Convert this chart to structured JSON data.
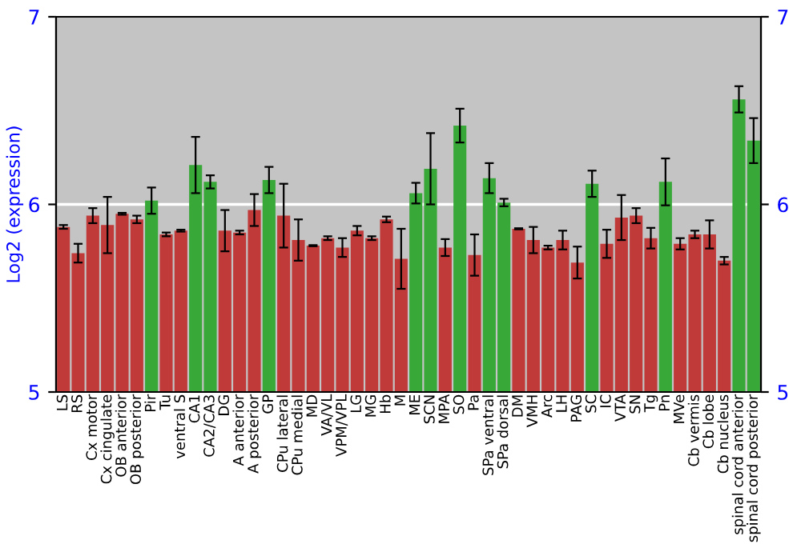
{
  "chart_data": {
    "type": "bar",
    "ylabel": "Log2 (expression)",
    "categories": [
      "LS",
      "RS",
      "Cx motor",
      "Cx cingulate",
      "OB anterior",
      "OB posterior",
      "Pir",
      "Tu",
      "ventral S",
      "CA1",
      "CA2/CA3",
      "DG",
      "A anterior",
      "A posterior",
      "GP",
      "CPu lateral",
      "CPu medial",
      "MD",
      "VA/VL",
      "VPM/VPL",
      "LG",
      "MG",
      "Hb",
      "M",
      "ME",
      "SCN",
      "MPA",
      "SO",
      "Pa",
      "SPa ventral",
      "SPa dorsal",
      "DM",
      "VMH",
      "Arc",
      "LH",
      "PAG",
      "SC",
      "IC",
      "VTA",
      "SN",
      "Tg",
      "Pn",
      "MVe",
      "Cb vermis",
      "Cb lobe",
      "Cb nucleus",
      "spinal cord anterior",
      "spinal cord posterior"
    ],
    "values": [
      5.88,
      5.74,
      5.94,
      5.89,
      5.95,
      5.92,
      6.02,
      5.84,
      5.86,
      6.21,
      6.12,
      5.86,
      5.85,
      5.97,
      6.13,
      5.94,
      5.81,
      5.78,
      5.82,
      5.77,
      5.86,
      5.82,
      5.92,
      5.71,
      6.06,
      6.19,
      5.77,
      6.42,
      5.73,
      6.14,
      6.01,
      5.87,
      5.81,
      5.77,
      5.81,
      5.69,
      6.11,
      5.79,
      5.93,
      5.94,
      5.82,
      6.12,
      5.79,
      5.84,
      5.84,
      5.7,
      6.56,
      6.34
    ],
    "errors": [
      0.01,
      0.05,
      0.04,
      0.15,
      0.005,
      0.02,
      0.07,
      0.01,
      0.005,
      0.15,
      0.035,
      0.11,
      0.01,
      0.085,
      0.07,
      0.17,
      0.11,
      0.003,
      0.01,
      0.05,
      0.025,
      0.01,
      0.015,
      0.16,
      0.055,
      0.19,
      0.045,
      0.09,
      0.11,
      0.08,
      0.02,
      0.003,
      0.07,
      0.01,
      0.05,
      0.085,
      0.07,
      0.075,
      0.12,
      0.04,
      0.055,
      0.125,
      0.03,
      0.02,
      0.075,
      0.02,
      0.07,
      0.12
    ],
    "colors": [
      "#c03a3a",
      "#c03a3a",
      "#c03a3a",
      "#c03a3a",
      "#c03a3a",
      "#c03a3a",
      "#38a838",
      "#c03a3a",
      "#c03a3a",
      "#38a838",
      "#38a838",
      "#c03a3a",
      "#c03a3a",
      "#c03a3a",
      "#38a838",
      "#c03a3a",
      "#c03a3a",
      "#c03a3a",
      "#c03a3a",
      "#c03a3a",
      "#c03a3a",
      "#c03a3a",
      "#c03a3a",
      "#c03a3a",
      "#38a838",
      "#38a838",
      "#c03a3a",
      "#38a838",
      "#c03a3a",
      "#38a838",
      "#38a838",
      "#c03a3a",
      "#c03a3a",
      "#c03a3a",
      "#c03a3a",
      "#c03a3a",
      "#38a838",
      "#c03a3a",
      "#c03a3a",
      "#c03a3a",
      "#c03a3a",
      "#38a838",
      "#c03a3a",
      "#c03a3a",
      "#c03a3a",
      "#c03a3a",
      "#38a838",
      "#38a838"
    ],
    "ylim": [
      5,
      7
    ],
    "yticks": [
      5,
      6,
      7
    ],
    "y2lim": [
      5,
      7
    ],
    "y2ticks": [
      5,
      6,
      7
    ],
    "ref_lines": [
      {
        "axis": "y",
        "value": 6,
        "color": "#ffffff"
      }
    ]
  }
}
